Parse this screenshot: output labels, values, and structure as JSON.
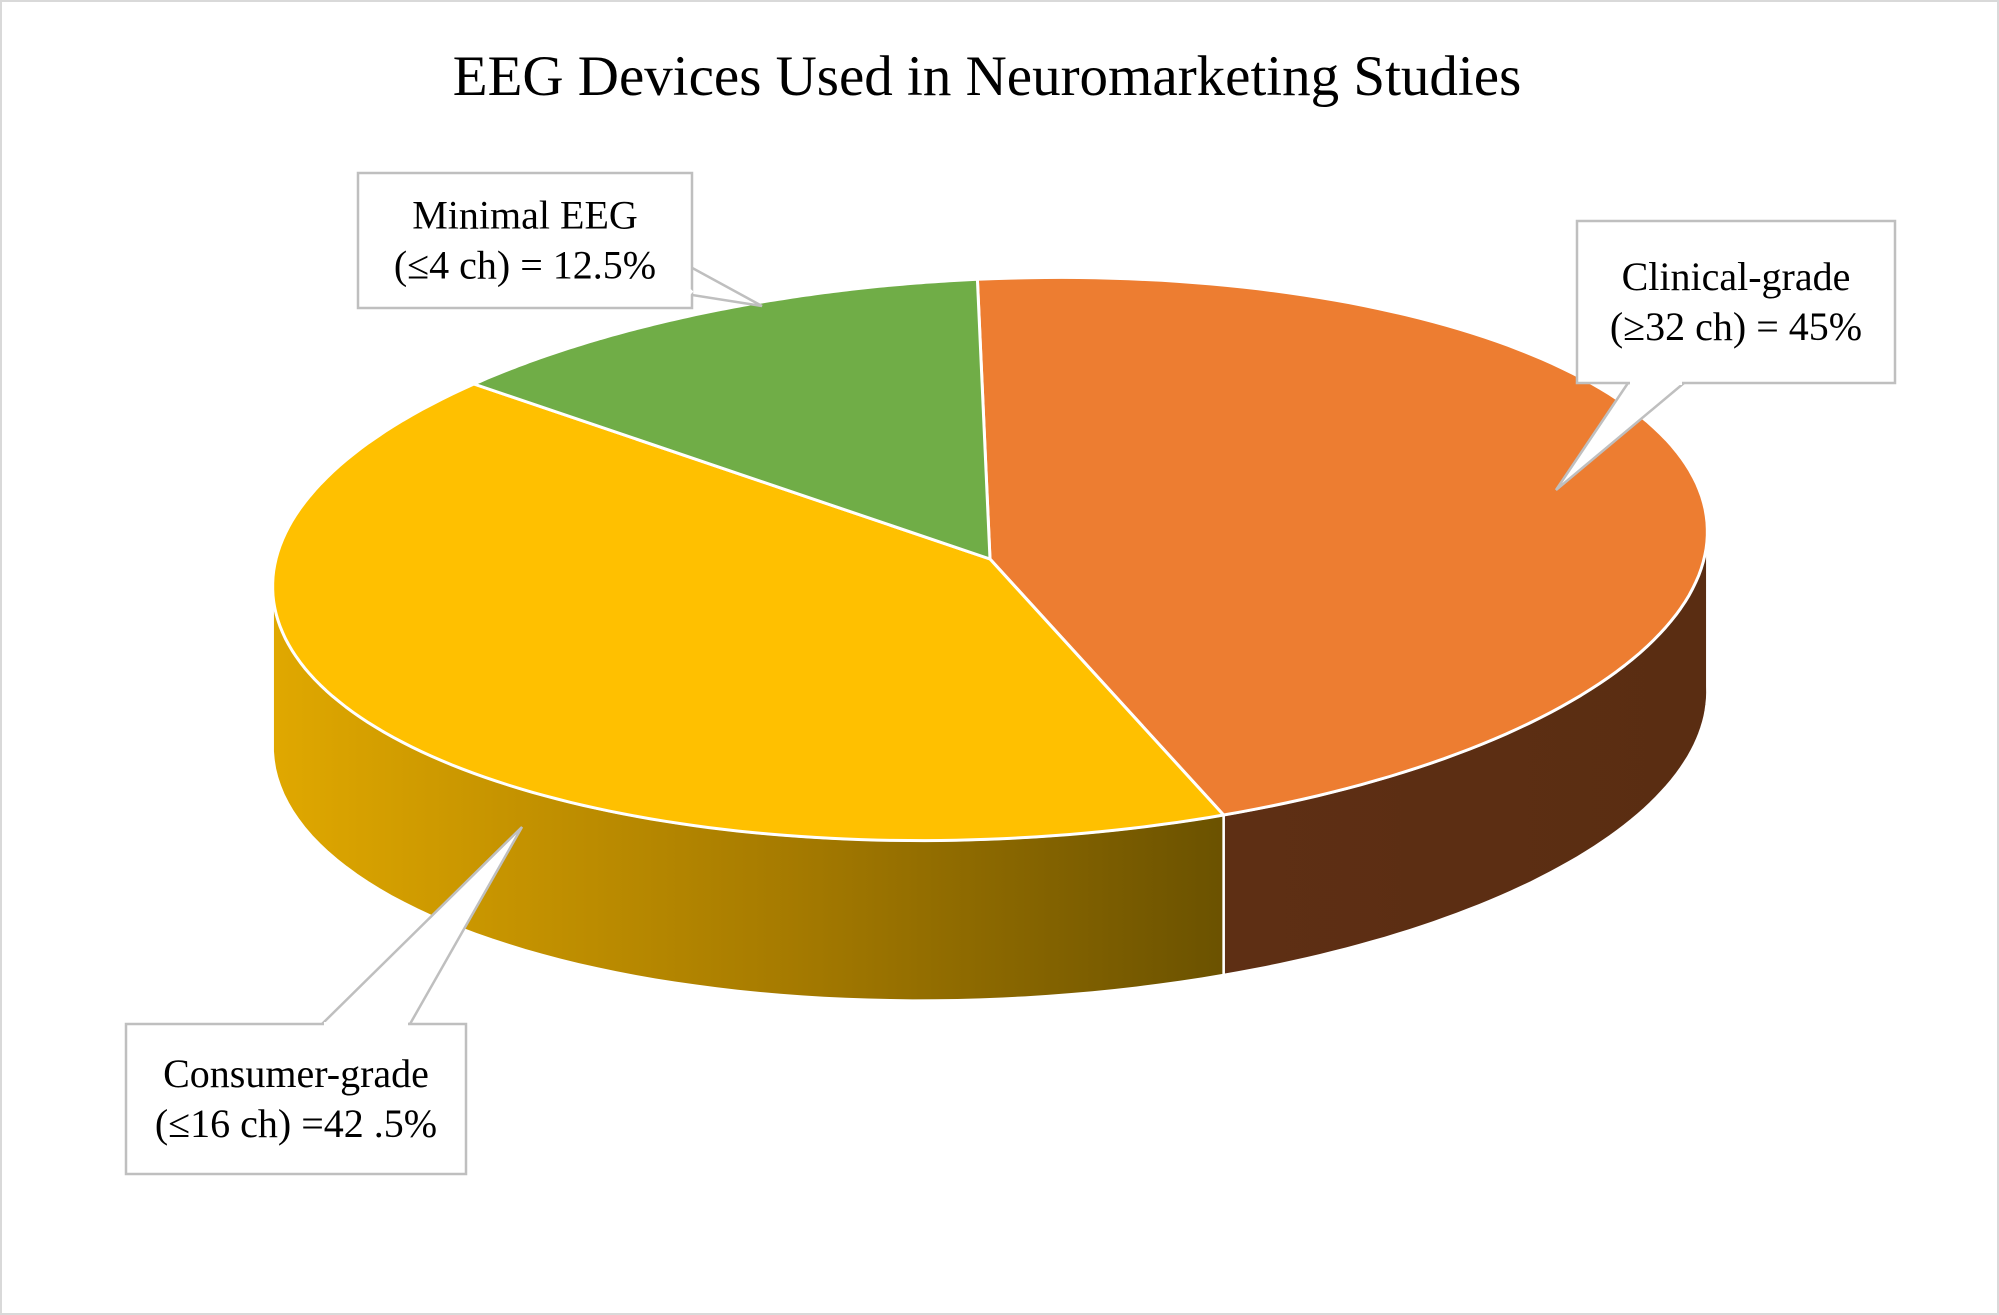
{
  "chart_data": {
    "type": "pie",
    "title": "EEG Devices Used in Neuromarketing Studies",
    "style": "3d",
    "slices": [
      {
        "key": "clinical",
        "value": 45,
        "color": "#ED7D31",
        "side_color": "#5E2F14",
        "label_lines": [
          "Clinical-grade",
          "(≥32 ch) = 45%"
        ]
      },
      {
        "key": "consumer",
        "value": 42.5,
        "color": "#FFC000",
        "side_color": "#C99A00",
        "label_lines": [
          "Consumer-grade",
          "(≤16 ch) =42 .5%"
        ]
      },
      {
        "key": "minimal",
        "value": 12.5,
        "color": "#70AD47",
        "side_color": "#3F6A24",
        "label_lines": [
          "Minimal EEG",
          "(≤4 ch) = 12.5%"
        ]
      }
    ],
    "labels_style": "callouts",
    "legend": "none"
  }
}
